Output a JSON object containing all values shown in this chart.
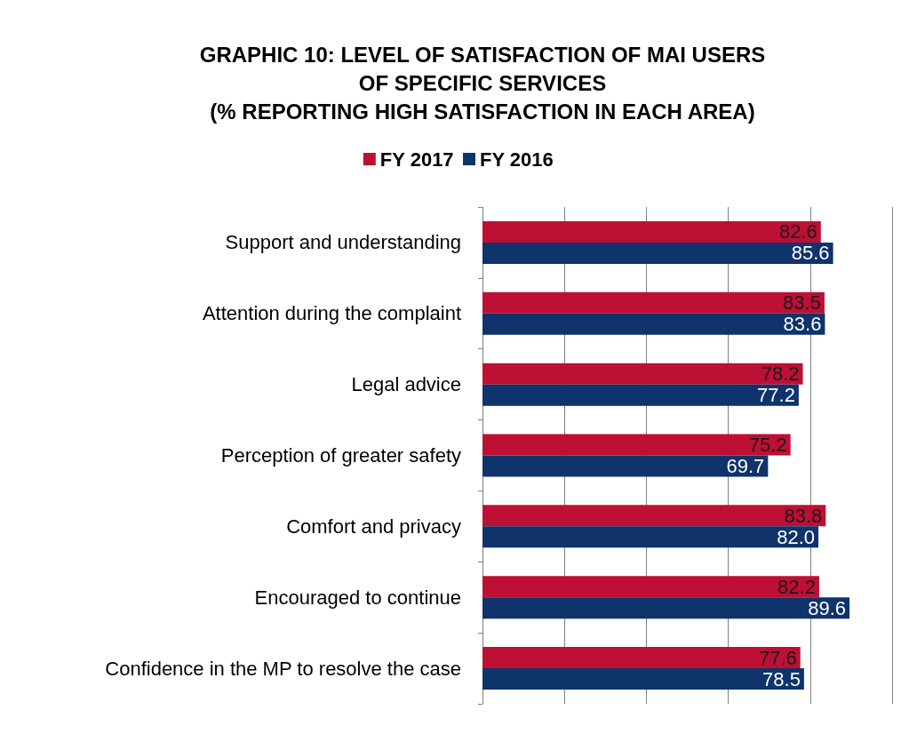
{
  "chart_data": {
    "type": "bar",
    "orientation": "horizontal",
    "title": "GRAPHIC 10: LEVEL OF SATISFACTION OF MAI USERS\nOF SPECIFIC SERVICES\n(% REPORTING HIGH SATISFACTION IN EACH AREA)",
    "categories": [
      "Support and understanding",
      "Attention during the complaint",
      "Legal advice",
      "Perception of greater safety",
      "Comfort and privacy",
      "Encouraged to continue",
      "Confidence in the MP to resolve the case"
    ],
    "series": [
      {
        "name": "FY 2017",
        "color": "#be0f34",
        "values": [
          82.6,
          83.5,
          78.2,
          75.2,
          83.8,
          82.2,
          77.6
        ],
        "value_labels": [
          "82.6",
          "83.5",
          "78.2",
          "75.2",
          "83.8",
          "82.2",
          "77.6"
        ]
      },
      {
        "name": "FY 2016",
        "color": "#0f336b",
        "values": [
          85.6,
          83.6,
          77.2,
          69.7,
          82.0,
          89.6,
          78.5
        ],
        "value_labels": [
          "85.6",
          "83.6",
          "77.2",
          "69.7",
          "82.0",
          "89.6",
          "78.5"
        ]
      }
    ],
    "xlim": [
      0,
      100
    ],
    "xticks": [
      {
        "value": 0,
        "label": null
      },
      {
        "value": 20,
        "label": null
      },
      {
        "value": 40,
        "label": null
      },
      {
        "value": 60,
        "label": null
      },
      {
        "value": 80,
        "label": null
      },
      {
        "value": 100,
        "label": null
      }
    ],
    "grid": "x",
    "legend": "top"
  }
}
